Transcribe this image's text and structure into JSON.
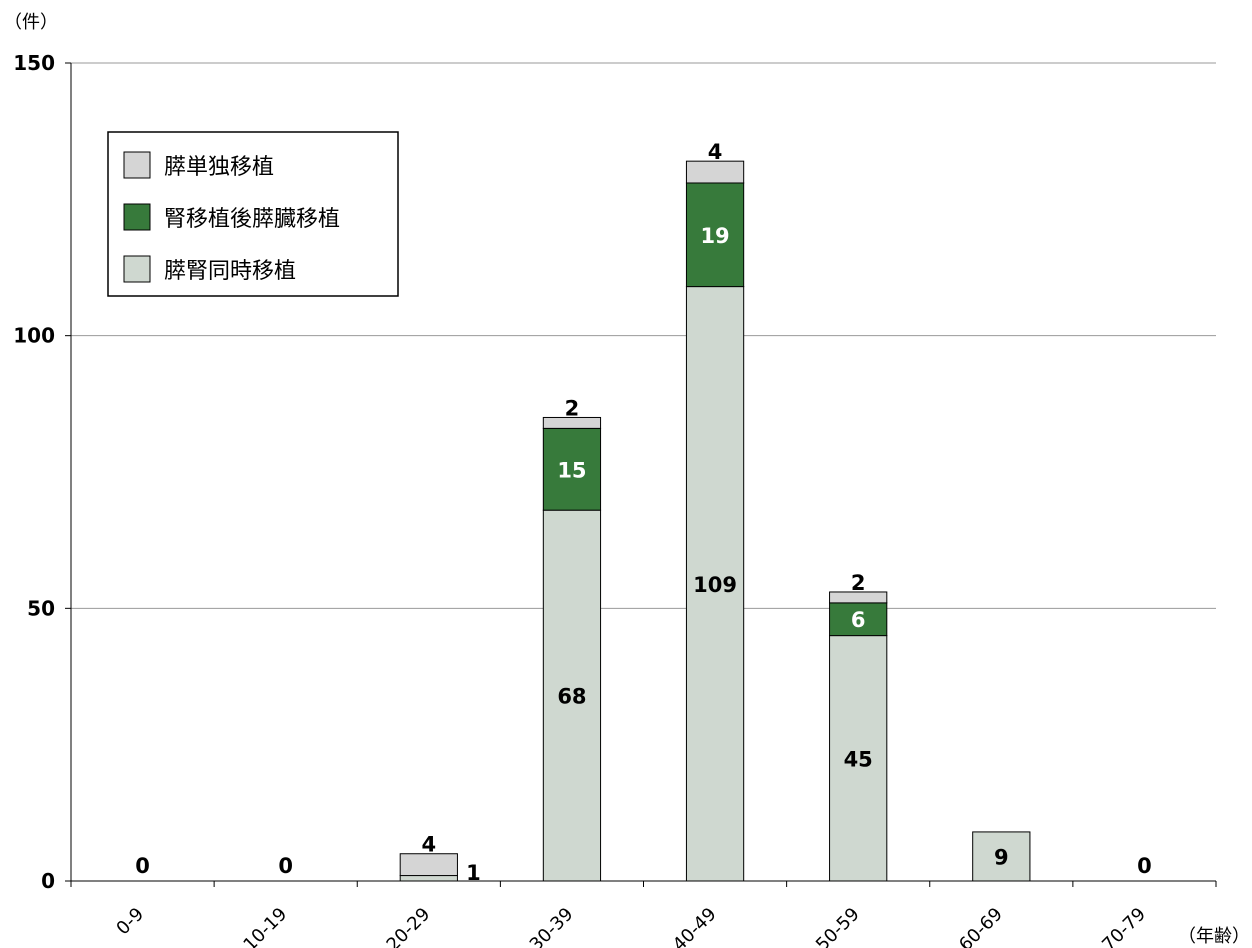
{
  "chart_data": {
    "type": "bar",
    "stacked": true,
    "ylabel": "（件）",
    "xlabel": "（年齢）",
    "ylim": [
      0,
      150
    ],
    "yticks": [
      0,
      50,
      100,
      150
    ],
    "grid": true,
    "legend_position": "top-left",
    "categories": [
      "0-9",
      "10-19",
      "20-29",
      "30-39",
      "40-49",
      "50-59",
      "60-69",
      "70-79"
    ],
    "series": [
      {
        "name": "膵腎同時移植",
        "color": "#cfd8d0",
        "label_color": "#000000",
        "values": [
          0,
          0,
          1,
          68,
          109,
          45,
          9,
          0
        ]
      },
      {
        "name": "腎移植後膵臓移植",
        "color": "#377a3b",
        "label_color": "#ffffff",
        "values": [
          0,
          0,
          0,
          15,
          19,
          6,
          0,
          0
        ]
      },
      {
        "name": "膵単独移植",
        "color": "#d5d5d5",
        "label_color": "#000000",
        "values": [
          0,
          0,
          4,
          2,
          4,
          2,
          0,
          0
        ]
      }
    ],
    "data_labels": [
      {
        "category": "0-9",
        "series": "膵腎同時移植",
        "text": "0"
      },
      {
        "category": "10-19",
        "series": "膵腎同時移植",
        "text": "0"
      },
      {
        "category": "20-29",
        "series": "膵単独移植",
        "text": "4"
      },
      {
        "category": "20-29",
        "series": "膵腎同時移植",
        "text": "1"
      },
      {
        "category": "30-39",
        "series": "膵腎同時移植",
        "text": "68"
      },
      {
        "category": "30-39",
        "series": "腎移植後膵臓移植",
        "text": "15"
      },
      {
        "category": "30-39",
        "series": "膵単独移植",
        "text": "2"
      },
      {
        "category": "40-49",
        "series": "膵腎同時移植",
        "text": "109"
      },
      {
        "category": "40-49",
        "series": "腎移植後膵臓移植",
        "text": "19"
      },
      {
        "category": "40-49",
        "series": "膵単独移植",
        "text": "4"
      },
      {
        "category": "50-59",
        "series": "膵腎同時移植",
        "text": "45"
      },
      {
        "category": "50-59",
        "series": "腎移植後膵臓移植",
        "text": "6"
      },
      {
        "category": "50-59",
        "series": "膵単独移植",
        "text": "2"
      },
      {
        "category": "60-69",
        "series": "膵腎同時移植",
        "text": "9"
      },
      {
        "category": "70-79",
        "series": "膵腎同時移植",
        "text": "0"
      }
    ],
    "legend_order": [
      "膵単独移植",
      "腎移植後膵臓移植",
      "膵腎同時移植"
    ]
  }
}
